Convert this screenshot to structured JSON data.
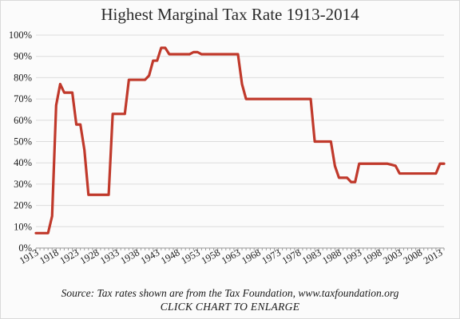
{
  "chart_data": {
    "type": "line",
    "title": "Highest Marginal Tax Rate 1913-2014",
    "xlabel": "",
    "ylabel": "",
    "xlim": [
      1913,
      2014
    ],
    "ylim": [
      0,
      100
    ],
    "grid": true,
    "color": "#c0392b",
    "y_tick_labels": [
      "0%",
      "10%",
      "20%",
      "30%",
      "40%",
      "50%",
      "60%",
      "70%",
      "80%",
      "90%",
      "100%"
    ],
    "x_tick_labels": [
      "1913",
      "1918",
      "1923",
      "1928",
      "1933",
      "1938",
      "1943",
      "1948",
      "1953",
      "1958",
      "1963",
      "1968",
      "1973",
      "1978",
      "1983",
      "1988",
      "1993",
      "1998",
      "2003",
      "2008",
      "2013"
    ],
    "series": [
      {
        "points": [
          [
            1913,
            7
          ],
          [
            1916,
            7
          ],
          [
            1917,
            15
          ],
          [
            1918,
            67
          ],
          [
            1919,
            77
          ],
          [
            1920,
            73
          ],
          [
            1922,
            73
          ],
          [
            1923,
            58
          ],
          [
            1924,
            58
          ],
          [
            1925,
            46
          ],
          [
            1926,
            25
          ],
          [
            1931,
            25
          ],
          [
            1932,
            63
          ],
          [
            1935,
            63
          ],
          [
            1936,
            79
          ],
          [
            1940,
            79
          ],
          [
            1941,
            81
          ],
          [
            1942,
            88
          ],
          [
            1943,
            88
          ],
          [
            1944,
            94
          ],
          [
            1945,
            94
          ],
          [
            1946,
            91
          ],
          [
            1951,
            91
          ],
          [
            1952,
            92
          ],
          [
            1953,
            92
          ],
          [
            1954,
            91
          ],
          [
            1963,
            91
          ],
          [
            1964,
            77
          ],
          [
            1965,
            70
          ],
          [
            1981,
            70
          ],
          [
            1982,
            50
          ],
          [
            1986,
            50
          ],
          [
            1987,
            38.5
          ],
          [
            1988,
            33
          ],
          [
            1990,
            33
          ],
          [
            1991,
            31
          ],
          [
            1992,
            31
          ],
          [
            1993,
            39.6
          ],
          [
            2000,
            39.6
          ],
          [
            2001,
            39.1
          ],
          [
            2002,
            38.6
          ],
          [
            2003,
            35
          ],
          [
            2012,
            35
          ],
          [
            2013,
            39.6
          ],
          [
            2014,
            39.6
          ]
        ]
      }
    ]
  },
  "footer": {
    "source": "Source: Tax rates shown are from the Tax Foundation,  www.taxfoundation.org",
    "enlarge": "CLICK CHART TO ENLARGE"
  }
}
